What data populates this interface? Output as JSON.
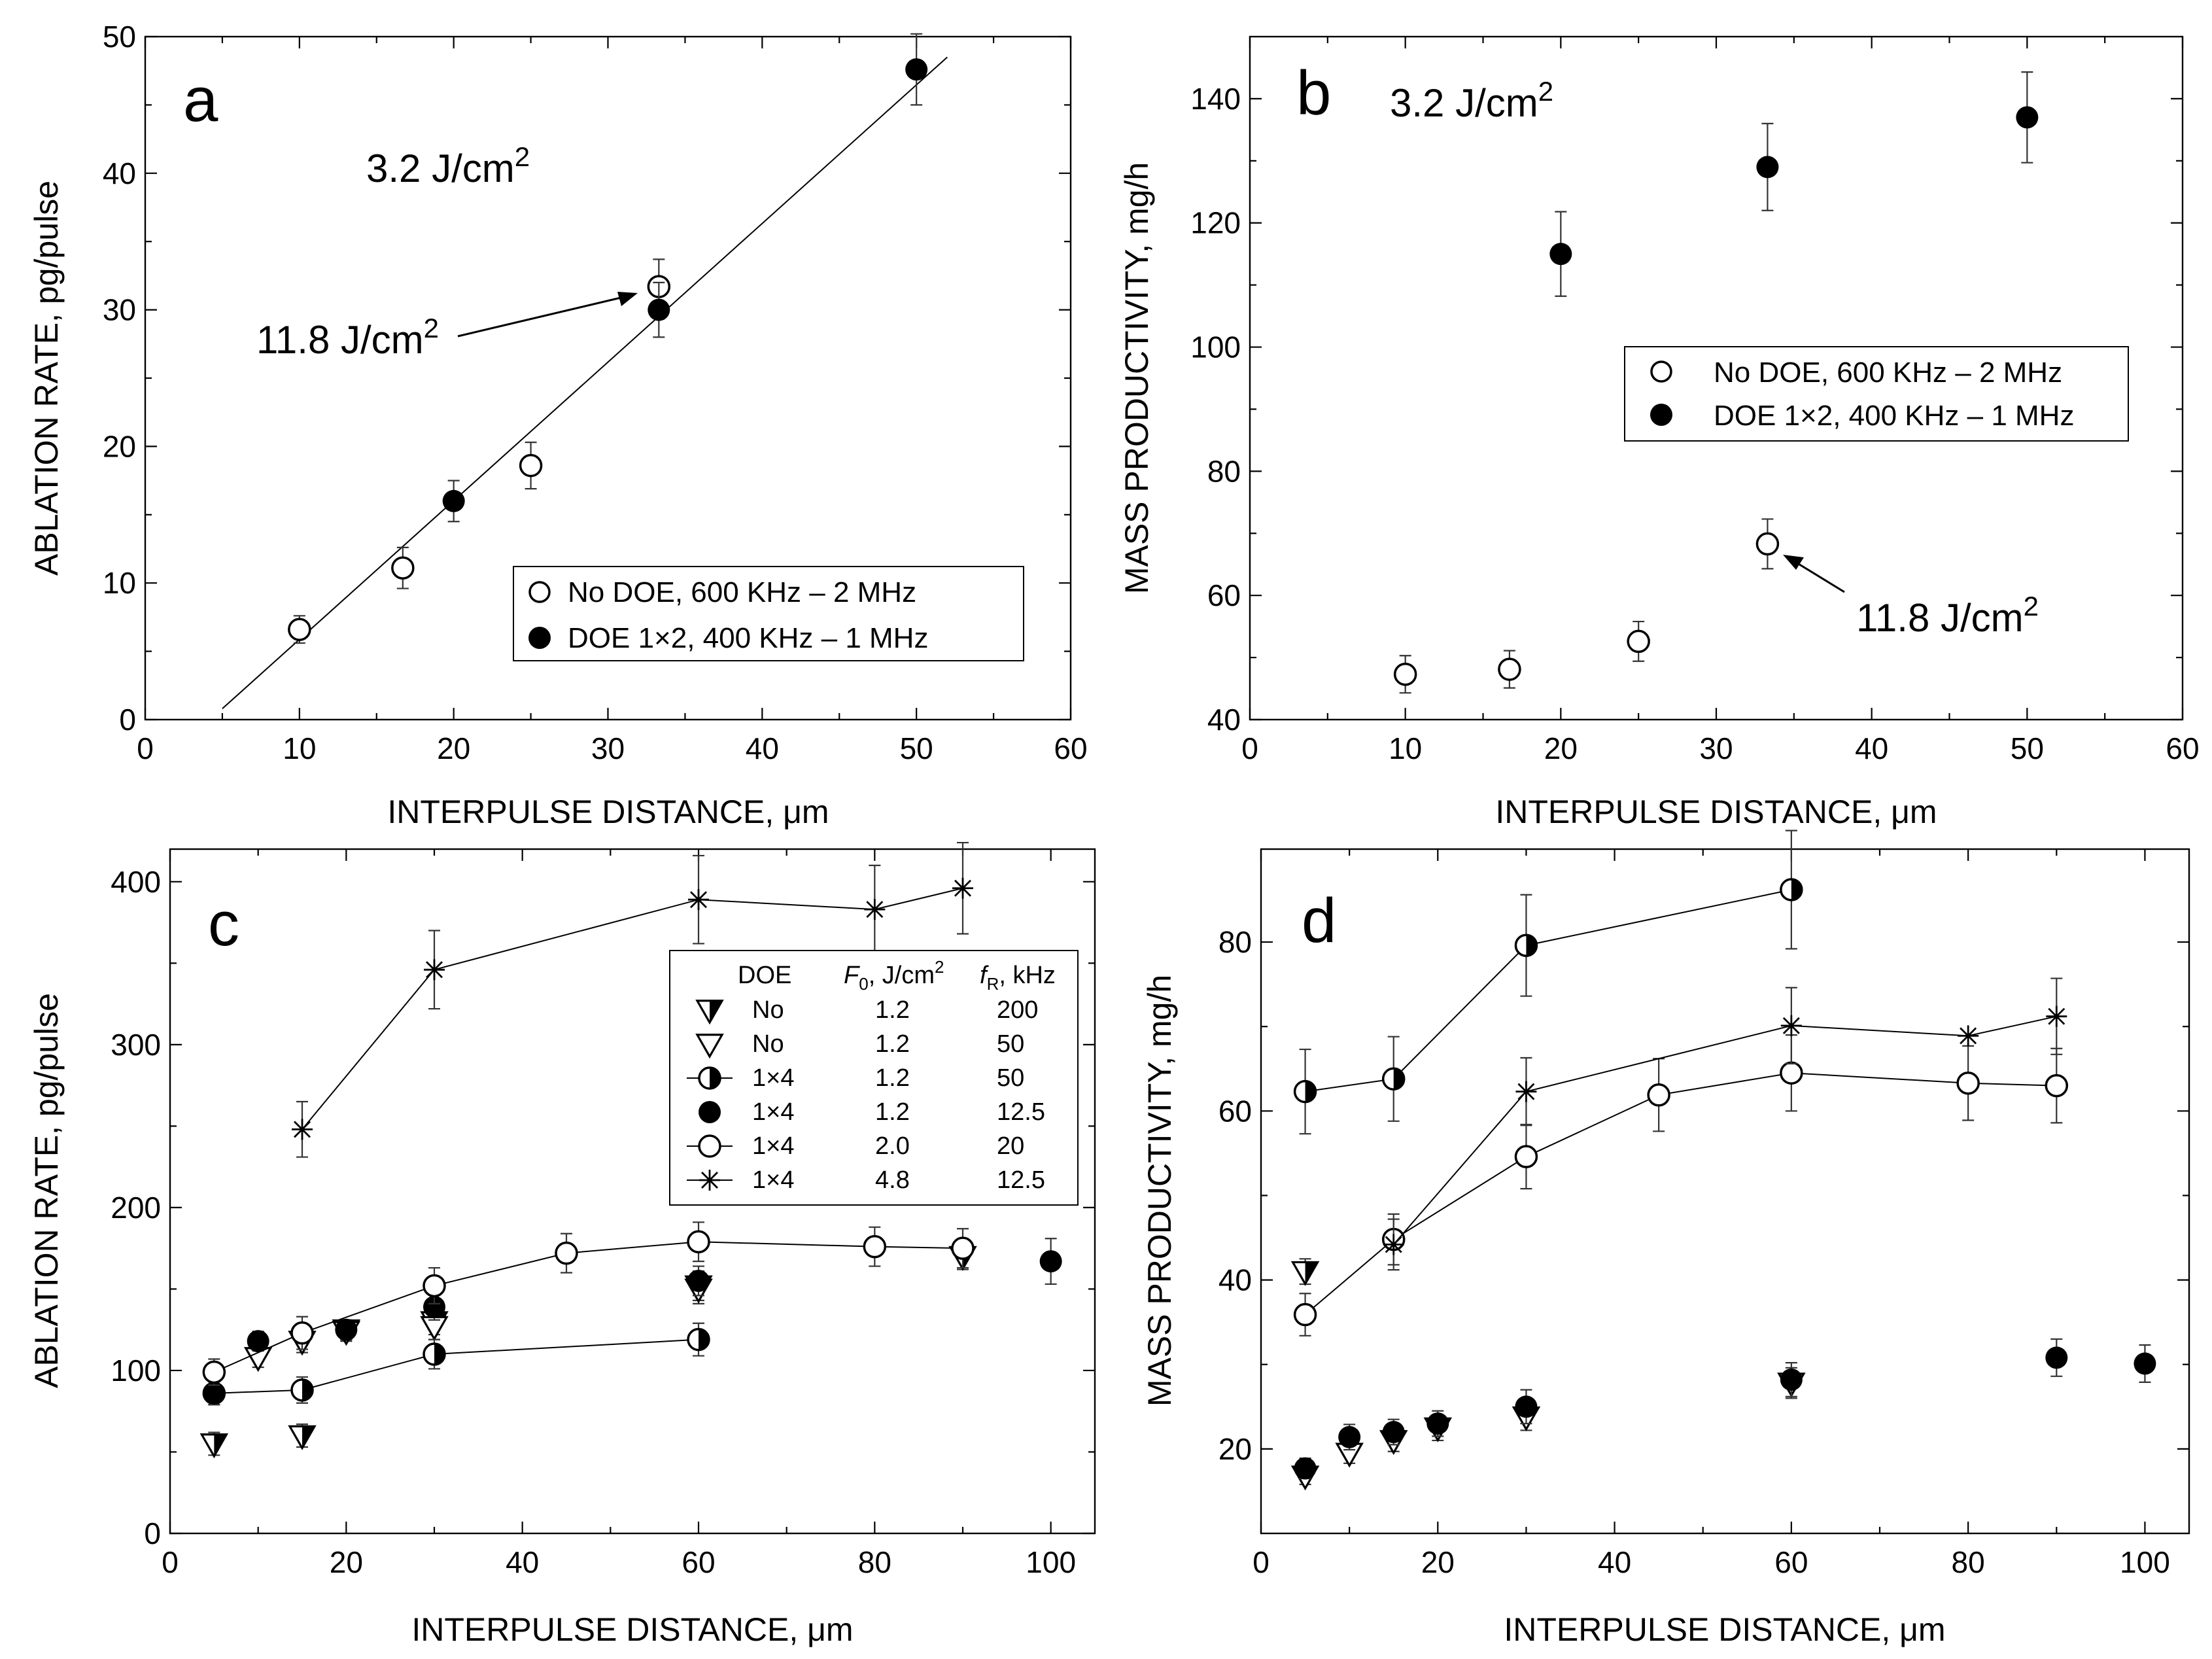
{
  "chart_data": [
    {
      "id": "a",
      "type": "scatter",
      "panel_letter": "a",
      "annotation": "3.2 J/cm",
      "annotation_sup": "2",
      "xlabel": "INTERPULSE DISTANCE, μm",
      "ylabel": "ABLATION RATE, pg/pulse",
      "xlim": [
        0,
        60
      ],
      "ylim": [
        0,
        50
      ],
      "xticks": [
        0,
        10,
        20,
        30,
        40,
        50,
        60
      ],
      "yticks": [
        0,
        10,
        20,
        30,
        40,
        50
      ],
      "fit_line": {
        "x": [
          5,
          52
        ],
        "y": [
          0.8,
          48.5
        ]
      },
      "series": [
        {
          "name": "No DOE, 600 KHz – 2 MHz",
          "marker": "open-circle",
          "points": [
            [
              10,
              6.6,
              1.0
            ],
            [
              16.7,
              11.1,
              1.5
            ],
            [
              25,
              18.6,
              1.7
            ],
            [
              33.3,
              31.7,
              2.0
            ]
          ]
        },
        {
          "name": "DOE 1×2, 400 KHz – 1 MHz",
          "marker": "filled-circle",
          "points": [
            [
              20,
              16.0,
              1.5
            ],
            [
              33.3,
              30.0,
              2.0
            ],
            [
              50,
              47.6,
              2.6
            ]
          ]
        }
      ],
      "arrow_note": {
        "text": "11.8 J/cm",
        "sup": "2",
        "target": [
          33.3,
          31.7
        ]
      }
    },
    {
      "id": "b",
      "type": "scatter",
      "panel_letter": "b",
      "annotation": "3.2 J/cm",
      "annotation_sup": "2",
      "xlabel": "INTERPULSE DISTANCE, μm",
      "ylabel": "MASS PRODUCTIVITY, mg/h",
      "xlim": [
        0,
        60
      ],
      "ylim": [
        40,
        150
      ],
      "xticks": [
        0,
        10,
        20,
        30,
        40,
        50,
        60
      ],
      "yticks": [
        40,
        60,
        80,
        100,
        120,
        140
      ],
      "series": [
        {
          "name": "No DOE, 600 KHz – 2 MHz",
          "marker": "open-circle",
          "points": [
            [
              10,
              47.3,
              3.0
            ],
            [
              16.7,
              48.1,
              3.0
            ],
            [
              25,
              52.6,
              3.2
            ],
            [
              33.3,
              68.3,
              4.0
            ]
          ]
        },
        {
          "name": "DOE 1×2, 400 KHz – 1 MHz",
          "marker": "filled-circle",
          "points": [
            [
              20,
              115,
              6.8
            ],
            [
              33.3,
              129,
              7.0
            ],
            [
              50,
              137,
              7.3
            ]
          ]
        }
      ],
      "arrow_note": {
        "text": "11.8 J/cm",
        "sup": "2",
        "target": [
          33.3,
          68.3
        ]
      }
    },
    {
      "id": "c",
      "type": "line",
      "panel_letter": "c",
      "xlabel": "INTERPULSE DISTANCE, μm",
      "ylabel": "ABLATION RATE, pg/pulse",
      "xlim": [
        0,
        105
      ],
      "ylim": [
        0,
        420
      ],
      "xticks": [
        0,
        20,
        40,
        60,
        80,
        100
      ],
      "yticks": [
        0,
        100,
        200,
        300,
        400
      ],
      "legend_header": {
        "c1": "DOE",
        "c2": "F",
        "c2sub": "0",
        "c2tail": ", J/cm",
        "c2sup": "2",
        "c3": "f",
        "c3sub": "R",
        "c3tail": ", kHz"
      },
      "series": [
        {
          "doe": "No",
          "f0": "1.2",
          "fr": "200",
          "marker": "tri-down-half",
          "connected": false,
          "points": [
            [
              5,
              55,
              7
            ],
            [
              15,
              60,
              7
            ],
            [
              20,
              125,
              6
            ],
            [
              30,
              130,
              8
            ],
            [
              60,
              152,
              9
            ],
            [
              90,
              170,
              8
            ]
          ]
        },
        {
          "doe": "No",
          "f0": "1.2",
          "fr": "50",
          "marker": "tri-down-open",
          "connected": false,
          "points": [
            [
              10,
              108,
              6
            ],
            [
              15,
              118,
              7
            ],
            [
              20,
              124,
              6
            ],
            [
              30,
              127,
              8
            ],
            [
              60,
              150,
              9
            ]
          ]
        },
        {
          "doe": "1×4",
          "f0": "1.2",
          "fr": "50",
          "marker": "half-circle",
          "connected": true,
          "points": [
            [
              5,
              86,
              7
            ],
            [
              15,
              88,
              8
            ],
            [
              30,
              110,
              9
            ],
            [
              60,
              119,
              10
            ]
          ]
        },
        {
          "doe": "1×4",
          "f0": "1.2",
          "fr": "12.5",
          "marker": "filled-circle",
          "connected": false,
          "points": [
            [
              5,
              86,
              7
            ],
            [
              10,
              118,
              6
            ],
            [
              20,
              125,
              6
            ],
            [
              30,
              139,
              8
            ],
            [
              60,
              155,
              9
            ],
            [
              100,
              167,
              14
            ]
          ]
        },
        {
          "doe": "1×4",
          "f0": "2.0",
          "fr": "20",
          "marker": "open-circle",
          "connected": true,
          "points": [
            [
              5,
              99,
              8
            ],
            [
              15,
              123,
              10
            ],
            [
              30,
              152,
              11
            ],
            [
              45,
              172,
              12
            ],
            [
              60,
              179,
              12
            ],
            [
              80,
              176,
              12
            ],
            [
              90,
              175,
              12
            ]
          ]
        },
        {
          "doe": "1×4",
          "f0": "4.8",
          "fr": "12.5",
          "marker": "star",
          "connected": true,
          "points": [
            [
              15,
              248,
              17
            ],
            [
              30,
              346,
              24
            ],
            [
              60,
              389,
              27
            ],
            [
              80,
              383,
              27
            ],
            [
              90,
              396,
              28
            ]
          ]
        }
      ]
    },
    {
      "id": "d",
      "type": "line",
      "panel_letter": "d",
      "xlabel": "INTERPULSE DISTANCE, μm",
      "ylabel": "MASS PRODUCTIVITY, mg/h",
      "xlim": [
        0,
        105
      ],
      "ylim": [
        10,
        91
      ],
      "xticks": [
        0,
        20,
        40,
        60,
        80,
        100
      ],
      "yticks": [
        20,
        40,
        60,
        80
      ],
      "series": [
        {
          "doe": "No",
          "f0": "1.2",
          "fr": "200",
          "marker": "tri-down-half",
          "connected": false,
          "points": [
            [
              5,
              41,
              1.5
            ]
          ]
        },
        {
          "doe": "No",
          "f0": "1.2",
          "fr": "50",
          "marker": "tri-down-open",
          "connected": false,
          "points": [
            [
              5,
              16.8,
              1.0
            ],
            [
              10,
              19.5,
              1.2
            ],
            [
              15,
              21.0,
              1.3
            ],
            [
              20,
              22.5,
              1.5
            ],
            [
              30,
              23.8,
              1.6
            ],
            [
              60,
              27.8,
              1.8
            ]
          ]
        },
        {
          "doe": "1×4",
          "f0": "1.2",
          "fr": "50",
          "marker": "half-circle",
          "connected": true,
          "points": [
            [
              5,
              62.3,
              5.0
            ],
            [
              15,
              63.8,
              5.0
            ],
            [
              30,
              79.6,
              6.0
            ],
            [
              60,
              86.2,
              7.0
            ]
          ]
        },
        {
          "doe": "1×4",
          "f0": "1.2",
          "fr": "12.5",
          "marker": "filled-circle",
          "connected": false,
          "points": [
            [
              5,
              17.7,
              1.2
            ],
            [
              10,
              21.4,
              1.5
            ],
            [
              15,
              22.0,
              1.5
            ],
            [
              20,
              23.0,
              1.5
            ],
            [
              30,
              25.0,
              2.0
            ],
            [
              60,
              28.2,
              2.0
            ],
            [
              90,
              30.8,
              2.2
            ],
            [
              100,
              30.1,
              2.2
            ]
          ]
        },
        {
          "doe": "1×4",
          "f0": "2.0",
          "fr": "20",
          "marker": "open-circle",
          "connected": true,
          "points": [
            [
              5,
              35.9,
              2.5
            ],
            [
              15,
              44.8,
              3.0
            ],
            [
              30,
              54.6,
              3.8
            ],
            [
              45,
              61.9,
              4.3
            ],
            [
              60,
              64.5,
              4.5
            ],
            [
              80,
              63.3,
              4.4
            ],
            [
              90,
              63.0,
              4.4
            ]
          ]
        },
        {
          "doe": "1×4",
          "f0": "4.8",
          "fr": "12.5",
          "marker": "star",
          "connected": true,
          "points": [
            [
              15,
              44.2,
              3.0
            ],
            [
              30,
              62.3,
              4.0
            ],
            [
              60,
              70.1,
              4.5
            ],
            [
              80,
              68.9,
              0.0
            ],
            [
              90,
              71.2,
              4.5
            ]
          ]
        }
      ]
    }
  ]
}
